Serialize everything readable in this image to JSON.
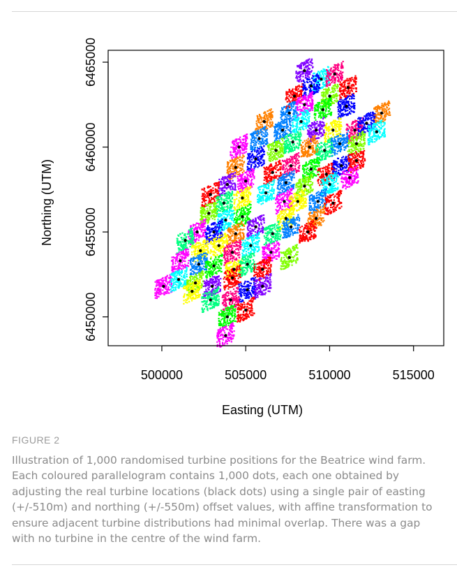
{
  "figure": {
    "label": "FIGURE 2",
    "caption": "Illustration of 1,000 randomised turbine positions for the Beatrice wind farm. Each coloured parallelogram contains 1,000 dots, each one obtained by adjusting the real turbine locations (black dots) using a single pair of easting (+/-510m) and northing (+/-550m) offset values, with affine transformation to ensure adjacent turbine distributions had minimal overlap. There was a gap with no turbine in the centre of the wind farm."
  },
  "chart_data": {
    "type": "scatter",
    "xlabel": "Easting (UTM)",
    "ylabel": "Northing (UTM)",
    "xlim": [
      496800,
      516800
    ],
    "ylim": [
      6448300,
      6465700
    ],
    "xticks": [
      500000,
      505000,
      510000,
      515000
    ],
    "yticks": [
      6450000,
      6455000,
      6460000,
      6465000
    ],
    "xtick_labels": [
      "500000",
      "505000",
      "510000",
      "515000"
    ],
    "ytick_labels": [
      "6450000",
      "6455000",
      "6460000",
      "6465000"
    ],
    "offset_easting_m": 510,
    "offset_northing_m": 550,
    "marker_color": "#000000",
    "colors": [
      "#ff0000",
      "#ff8000",
      "#ffff00",
      "#80ff00",
      "#00ff00",
      "#00ff80",
      "#00ffff",
      "#0080ff",
      "#0000ff",
      "#8000ff",
      "#ff00ff",
      "#ff0080"
    ],
    "turbines": [
      {
        "x": 508500,
        "y": 6464500,
        "c": 9
      },
      {
        "x": 509500,
        "y": 6464000,
        "c": 6
      },
      {
        "x": 510300,
        "y": 6464300,
        "c": 11
      },
      {
        "x": 507900,
        "y": 6463000,
        "c": 0
      },
      {
        "x": 508900,
        "y": 6463600,
        "c": 8
      },
      {
        "x": 510000,
        "y": 6463000,
        "c": 3
      },
      {
        "x": 511100,
        "y": 6463500,
        "c": 0
      },
      {
        "x": 507600,
        "y": 6462000,
        "c": 7
      },
      {
        "x": 508500,
        "y": 6462500,
        "c": 10
      },
      {
        "x": 509600,
        "y": 6462200,
        "c": 4
      },
      {
        "x": 511000,
        "y": 6462400,
        "c": 8
      },
      {
        "x": 513100,
        "y": 6462000,
        "c": 1
      },
      {
        "x": 506100,
        "y": 6461500,
        "c": 1
      },
      {
        "x": 507200,
        "y": 6461000,
        "c": 7
      },
      {
        "x": 508300,
        "y": 6461500,
        "c": 6
      },
      {
        "x": 509200,
        "y": 6461000,
        "c": 9
      },
      {
        "x": 510200,
        "y": 6461000,
        "c": 2
      },
      {
        "x": 511500,
        "y": 6461000,
        "c": 11
      },
      {
        "x": 512200,
        "y": 6461400,
        "c": 8
      },
      {
        "x": 512800,
        "y": 6460900,
        "c": 6
      },
      {
        "x": 504600,
        "y": 6460000,
        "c": 10
      },
      {
        "x": 505800,
        "y": 6460500,
        "c": 7
      },
      {
        "x": 506800,
        "y": 6459800,
        "c": 3
      },
      {
        "x": 507800,
        "y": 6460300,
        "c": 5
      },
      {
        "x": 508800,
        "y": 6460000,
        "c": 1
      },
      {
        "x": 509700,
        "y": 6459800,
        "c": 5
      },
      {
        "x": 510600,
        "y": 6460200,
        "c": 7
      },
      {
        "x": 511600,
        "y": 6460200,
        "c": 3
      },
      {
        "x": 504400,
        "y": 6458800,
        "c": 1
      },
      {
        "x": 505600,
        "y": 6459300,
        "c": 8
      },
      {
        "x": 506600,
        "y": 6458500,
        "c": 0
      },
      {
        "x": 507700,
        "y": 6458900,
        "c": 11
      },
      {
        "x": 508900,
        "y": 6458700,
        "c": 4
      },
      {
        "x": 509800,
        "y": 6458400,
        "c": 0
      },
      {
        "x": 510700,
        "y": 6458900,
        "c": 8
      },
      {
        "x": 511600,
        "y": 6459200,
        "c": 0
      },
      {
        "x": 503900,
        "y": 6457800,
        "c": 9
      },
      {
        "x": 505000,
        "y": 6458000,
        "c": 10
      },
      {
        "x": 506200,
        "y": 6457300,
        "c": 6
      },
      {
        "x": 507400,
        "y": 6457900,
        "c": 7
      },
      {
        "x": 508500,
        "y": 6457700,
        "c": 3
      },
      {
        "x": 510000,
        "y": 6457800,
        "c": 6
      },
      {
        "x": 511200,
        "y": 6458200,
        "c": 10
      },
      {
        "x": 502900,
        "y": 6457200,
        "c": 0
      },
      {
        "x": 503700,
        "y": 6456700,
        "c": 5
      },
      {
        "x": 504800,
        "y": 6457000,
        "c": 2
      },
      {
        "x": 507300,
        "y": 6456800,
        "c": 10
      },
      {
        "x": 508100,
        "y": 6456800,
        "c": 2
      },
      {
        "x": 509300,
        "y": 6456800,
        "c": 7
      },
      {
        "x": 510200,
        "y": 6456700,
        "c": 0
      },
      {
        "x": 502800,
        "y": 6456100,
        "c": 3
      },
      {
        "x": 503800,
        "y": 6455700,
        "c": 6
      },
      {
        "x": 504800,
        "y": 6455900,
        "c": 4
      },
      {
        "x": 507400,
        "y": 6455800,
        "c": 2
      },
      {
        "x": 509200,
        "y": 6455800,
        "c": 1
      },
      {
        "x": 502100,
        "y": 6455000,
        "c": 10
      },
      {
        "x": 503100,
        "y": 6455000,
        "c": 8
      },
      {
        "x": 504400,
        "y": 6454900,
        "c": 1
      },
      {
        "x": 505600,
        "y": 6455300,
        "c": 9
      },
      {
        "x": 506600,
        "y": 6454900,
        "c": 5
      },
      {
        "x": 507700,
        "y": 6455300,
        "c": 7
      },
      {
        "x": 508700,
        "y": 6455000,
        "c": 0
      },
      {
        "x": 501400,
        "y": 6454500,
        "c": 5
      },
      {
        "x": 502300,
        "y": 6453900,
        "c": 2
      },
      {
        "x": 503400,
        "y": 6454200,
        "c": 2
      },
      {
        "x": 504200,
        "y": 6453800,
        "c": 11
      },
      {
        "x": 505300,
        "y": 6454200,
        "c": 6
      },
      {
        "x": 506500,
        "y": 6453800,
        "c": 10
      },
      {
        "x": 507600,
        "y": 6453500,
        "c": 3
      },
      {
        "x": 501100,
        "y": 6453300,
        "c": 10
      },
      {
        "x": 502200,
        "y": 6453100,
        "c": 7
      },
      {
        "x": 503100,
        "y": 6453000,
        "c": 4
      },
      {
        "x": 504300,
        "y": 6452800,
        "c": 2
      },
      {
        "x": 505100,
        "y": 6453100,
        "c": 5
      },
      {
        "x": 506000,
        "y": 6452800,
        "c": 0
      },
      {
        "x": 500100,
        "y": 6451800,
        "c": 10
      },
      {
        "x": 501000,
        "y": 6452200,
        "c": 6
      },
      {
        "x": 502000,
        "y": 6452000,
        "c": 3
      },
      {
        "x": 503000,
        "y": 6451800,
        "c": 9
      },
      {
        "x": 504200,
        "y": 6452300,
        "c": 0
      },
      {
        "x": 505100,
        "y": 6451600,
        "c": 8
      },
      {
        "x": 506000,
        "y": 6451800,
        "c": 9
      },
      {
        "x": 501800,
        "y": 6451500,
        "c": 2
      },
      {
        "x": 502900,
        "y": 6451000,
        "c": 5
      },
      {
        "x": 504100,
        "y": 6451000,
        "c": 11
      },
      {
        "x": 503900,
        "y": 6450000,
        "c": 4
      },
      {
        "x": 505000,
        "y": 6450400,
        "c": 0
      },
      {
        "x": 503800,
        "y": 6448900,
        "c": 10
      }
    ]
  }
}
